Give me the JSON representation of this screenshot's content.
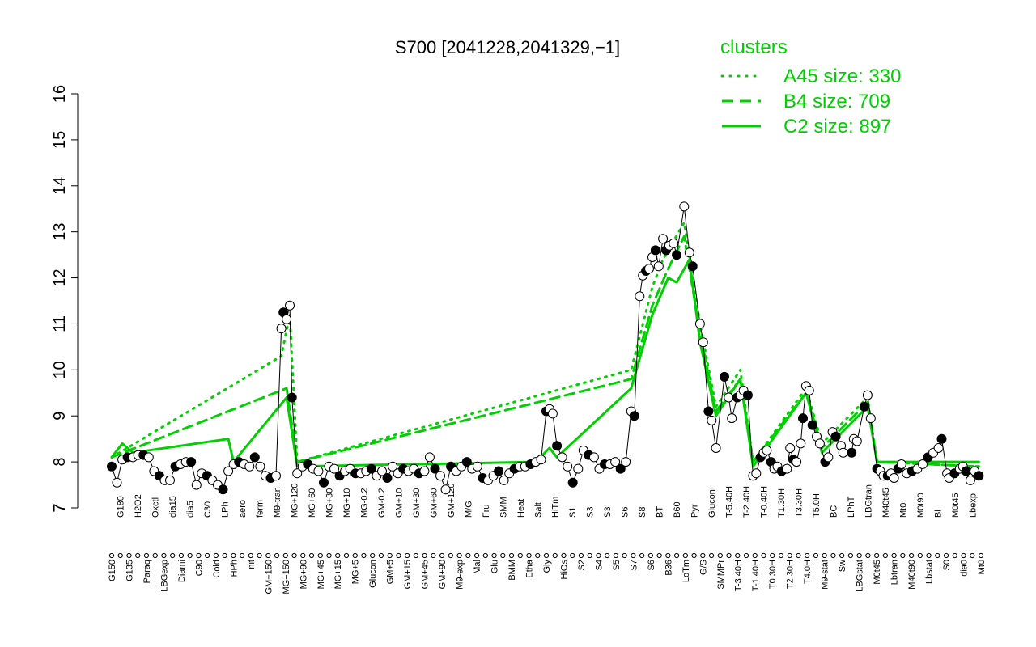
{
  "chart_data": {
    "type": "line",
    "title": "S700 [2041228,2041329,−1]",
    "xlabel": "",
    "ylabel": "",
    "ylim": [
      7,
      16
    ],
    "yticks": [
      7,
      8,
      9,
      10,
      11,
      12,
      13,
      14,
      15,
      16
    ],
    "x_tick_labels": [
      "G150",
      "G180",
      "G135",
      "H2O2",
      "Paraq",
      "Oxctl",
      "LBGexp",
      "dia15",
      "Diami",
      "dia5",
      "C90",
      "C30",
      "Cold",
      "LPh",
      "HPh",
      "aero",
      "nit",
      "ferm",
      "GM+150",
      "M9-tran",
      "MG+150",
      "MG+120",
      "MG+90",
      "MG+60",
      "MG+45",
      "MG+30",
      "MG+15",
      "MG+10",
      "MG+5",
      "MG-0.2",
      "Glucon",
      "GM-0.2",
      "GM+5",
      "GM+10",
      "GM+15",
      "GM+30",
      "GM+45",
      "GM+60",
      "GM+90",
      "GM+120",
      "M9-exp",
      "M/G",
      "Mal",
      "Fru",
      "Glu",
      "SMM",
      "BMM",
      "Heat",
      "Etha",
      "Salt",
      "Gly",
      "HiTm",
      "HiOs",
      "S1",
      "S2",
      "S3",
      "S4",
      "S3",
      "S5",
      "S6",
      "S7",
      "S8",
      "S6",
      "BT",
      "B36",
      "B60",
      "LoTm",
      "Pyr",
      "G/S",
      "Glucon",
      "SMMPr",
      "T-5.40H",
      "T-3.40H",
      "T-2.40H",
      "T-1.40H",
      "T-0.40H",
      "T0.30H",
      "T1.30H",
      "T2.30H",
      "T3.30H",
      "T4.0H",
      "T5.0H",
      "M9-stat",
      "BC",
      "Sw",
      "LPhT",
      "LBGstat",
      "LBGtran",
      "M0t45",
      "M40t45",
      "Lbtran",
      "Mt0",
      "M40t90",
      "M0t90",
      "Lbstat",
      "Bl",
      "S0",
      "M0t45",
      "dia0",
      "Lbexp",
      "Mt0"
    ],
    "legend": {
      "title": "clusters",
      "placement": "top-right",
      "entries": [
        {
          "label": "A45 size: 330",
          "style": "dotted"
        },
        {
          "label": "B4 size: 709",
          "style": "dashed"
        },
        {
          "label": "C2 size: 897",
          "style": "solid"
        }
      ]
    },
    "series": [
      {
        "name": "S700",
        "color": "#000000",
        "points": [
          [
            1,
            7.9
          ],
          [
            1.5,
            7.55
          ],
          [
            2,
            8.05
          ],
          [
            2.5,
            8.1
          ],
          [
            3,
            8.1
          ],
          [
            3.5,
            8.15
          ],
          [
            4,
            8.15
          ],
          [
            4.5,
            8.1
          ],
          [
            5,
            7.8
          ],
          [
            5.5,
            7.7
          ],
          [
            6,
            7.6
          ],
          [
            6.5,
            7.6
          ],
          [
            7,
            7.9
          ],
          [
            7.5,
            7.95
          ],
          [
            8,
            8.0
          ],
          [
            8.5,
            8.0
          ],
          [
            9,
            7.5
          ],
          [
            9.5,
            7.75
          ],
          [
            10,
            7.7
          ],
          [
            10.5,
            7.6
          ],
          [
            11,
            7.5
          ],
          [
            11.5,
            7.4
          ],
          [
            12,
            7.8
          ],
          [
            12.5,
            7.95
          ],
          [
            13,
            8.0
          ],
          [
            13.5,
            7.95
          ],
          [
            14,
            7.9
          ],
          [
            14.5,
            8.1
          ],
          [
            15,
            7.9
          ],
          [
            15.5,
            7.7
          ],
          [
            16,
            7.65
          ],
          [
            16.5,
            7.7
          ],
          [
            17,
            10.9
          ],
          [
            17.2,
            11.25
          ],
          [
            17.5,
            11.1
          ],
          [
            17.8,
            11.4
          ],
          [
            18,
            9.4
          ],
          [
            18.5,
            7.75
          ],
          [
            19,
            7.9
          ],
          [
            19.5,
            7.95
          ],
          [
            20,
            7.85
          ],
          [
            20.5,
            7.8
          ],
          [
            21,
            7.55
          ],
          [
            21.5,
            7.9
          ],
          [
            22,
            7.85
          ],
          [
            22.5,
            7.7
          ],
          [
            23,
            7.8
          ],
          [
            23.5,
            7.85
          ],
          [
            24,
            7.75
          ],
          [
            24.5,
            7.75
          ],
          [
            25,
            7.8
          ],
          [
            25.5,
            7.85
          ],
          [
            26,
            7.7
          ],
          [
            26.5,
            7.8
          ],
          [
            27,
            7.65
          ],
          [
            27.5,
            7.9
          ],
          [
            28,
            7.75
          ],
          [
            28.5,
            7.85
          ],
          [
            29,
            7.8
          ],
          [
            29.5,
            7.85
          ],
          [
            30,
            7.75
          ],
          [
            30.5,
            7.8
          ],
          [
            31,
            8.1
          ],
          [
            31.5,
            7.85
          ],
          [
            32,
            7.7
          ],
          [
            32.5,
            7.4
          ],
          [
            33,
            7.9
          ],
          [
            33.5,
            7.8
          ],
          [
            34,
            7.9
          ],
          [
            34.5,
            8.0
          ],
          [
            35,
            7.85
          ],
          [
            35.5,
            7.9
          ],
          [
            36,
            7.65
          ],
          [
            36.5,
            7.6
          ],
          [
            37,
            7.7
          ],
          [
            37.5,
            7.8
          ],
          [
            38,
            7.6
          ],
          [
            38.5,
            7.75
          ],
          [
            39,
            7.85
          ],
          [
            39.5,
            7.9
          ],
          [
            40,
            7.9
          ],
          [
            40.5,
            7.95
          ],
          [
            41,
            8.0
          ],
          [
            41.5,
            8.05
          ],
          [
            42,
            9.1
          ],
          [
            42.3,
            9.15
          ],
          [
            42.6,
            9.05
          ],
          [
            43,
            8.35
          ],
          [
            43.5,
            8.1
          ],
          [
            44,
            7.9
          ],
          [
            44.5,
            7.55
          ],
          [
            45,
            7.85
          ],
          [
            45.5,
            8.25
          ],
          [
            46,
            8.15
          ],
          [
            46.5,
            8.1
          ],
          [
            47,
            7.85
          ],
          [
            47.5,
            7.95
          ],
          [
            48,
            7.95
          ],
          [
            48.5,
            8.0
          ],
          [
            49,
            7.85
          ],
          [
            49.5,
            8.0
          ],
          [
            50,
            9.1
          ],
          [
            50.3,
            9.0
          ],
          [
            50.8,
            11.6
          ],
          [
            51.1,
            12.05
          ],
          [
            51.4,
            12.15
          ],
          [
            51.7,
            12.2
          ],
          [
            52,
            12.45
          ],
          [
            52.3,
            12.6
          ],
          [
            52.6,
            12.25
          ],
          [
            53,
            12.85
          ],
          [
            53.3,
            12.6
          ],
          [
            53.6,
            12.7
          ],
          [
            54,
            12.75
          ],
          [
            54.3,
            12.5
          ],
          [
            55,
            13.55
          ],
          [
            55.5,
            12.55
          ],
          [
            55.8,
            12.25
          ],
          [
            56.5,
            11.0
          ],
          [
            56.8,
            10.6
          ],
          [
            57.3,
            9.1
          ],
          [
            57.6,
            8.9
          ],
          [
            58,
            8.3
          ],
          [
            58.8,
            9.85
          ],
          [
            59.2,
            9.4
          ],
          [
            59.5,
            8.95
          ],
          [
            60,
            9.4
          ],
          [
            60.3,
            9.45
          ],
          [
            60.6,
            9.55
          ],
          [
            61,
            9.45
          ],
          [
            61.5,
            7.7
          ],
          [
            61.8,
            7.75
          ],
          [
            62.2,
            8.1
          ],
          [
            62.5,
            8.2
          ],
          [
            62.8,
            8.25
          ],
          [
            63.2,
            8.0
          ],
          [
            63.5,
            7.85
          ],
          [
            63.8,
            7.9
          ],
          [
            64.2,
            7.8
          ],
          [
            64.7,
            7.85
          ],
          [
            65,
            8.3
          ],
          [
            65.3,
            8.05
          ],
          [
            65.6,
            8.0
          ],
          [
            66,
            8.4
          ],
          [
            66.2,
            8.95
          ],
          [
            66.5,
            9.65
          ],
          [
            66.8,
            9.55
          ],
          [
            67.1,
            8.8
          ],
          [
            67.5,
            8.55
          ],
          [
            67.8,
            8.4
          ],
          [
            68.3,
            8.0
          ],
          [
            68.6,
            8.1
          ],
          [
            69,
            8.65
          ],
          [
            69.3,
            8.55
          ],
          [
            69.8,
            8.35
          ],
          [
            70,
            8.2
          ],
          [
            70.8,
            8.2
          ],
          [
            71,
            8.5
          ],
          [
            71.3,
            8.45
          ],
          [
            72,
            9.2
          ],
          [
            72.3,
            9.45
          ],
          [
            72.6,
            8.95
          ],
          [
            73.2,
            7.85
          ],
          [
            73.5,
            7.8
          ],
          [
            73.8,
            7.7
          ],
          [
            74.2,
            7.7
          ],
          [
            74.5,
            7.75
          ],
          [
            74.8,
            7.65
          ],
          [
            75.2,
            7.85
          ],
          [
            75.5,
            7.95
          ],
          [
            76,
            7.75
          ],
          [
            76.5,
            7.8
          ],
          [
            77,
            7.85
          ],
          [
            77.5,
            7.95
          ],
          [
            78,
            8.1
          ],
          [
            78.5,
            8.2
          ],
          [
            79,
            8.3
          ],
          [
            79.3,
            8.5
          ],
          [
            79.8,
            7.75
          ],
          [
            80,
            7.65
          ],
          [
            80.5,
            7.75
          ],
          [
            81,
            7.85
          ],
          [
            81.3,
            7.9
          ],
          [
            81.6,
            7.8
          ],
          [
            82,
            7.6
          ],
          [
            82.4,
            7.8
          ],
          [
            82.8,
            7.7
          ]
        ]
      },
      {
        "name": "A45 size: 330",
        "color": "#00d000",
        "style": "dotted",
        "values_ref": "approx",
        "points": [
          [
            1,
            8.1
          ],
          [
            17,
            10.3
          ],
          [
            17.8,
            11.2
          ],
          [
            18.5,
            8.0
          ],
          [
            50,
            10.0
          ],
          [
            52,
            11.8
          ],
          [
            53,
            12.4
          ],
          [
            55,
            13.2
          ],
          [
            56.5,
            11.0
          ],
          [
            58,
            9.2
          ],
          [
            60.3,
            10.0
          ],
          [
            61.5,
            8.0
          ],
          [
            66.5,
            9.6
          ],
          [
            68,
            8.4
          ],
          [
            72.3,
            9.4
          ],
          [
            73.2,
            8.0
          ],
          [
            82.8,
            7.9
          ]
        ]
      },
      {
        "name": "B4 size: 709",
        "color": "#00d000",
        "style": "dashed",
        "values_ref": "approx",
        "points": [
          [
            1,
            8.1
          ],
          [
            17.5,
            9.6
          ],
          [
            18.5,
            8.0
          ],
          [
            50,
            9.8
          ],
          [
            52,
            11.4
          ],
          [
            53.5,
            12.2
          ],
          [
            55,
            12.9
          ],
          [
            56.5,
            10.8
          ],
          [
            58,
            9.1
          ],
          [
            60.3,
            9.8
          ],
          [
            61.5,
            8.0
          ],
          [
            66.5,
            9.5
          ],
          [
            68,
            8.3
          ],
          [
            72.3,
            9.3
          ],
          [
            73.2,
            8.0
          ],
          [
            82.8,
            7.9
          ]
        ]
      },
      {
        "name": "C2 size: 897",
        "color": "#00d000",
        "style": "solid",
        "values_ref": "approx",
        "points": [
          [
            1,
            8.1
          ],
          [
            2,
            8.4
          ],
          [
            3,
            8.2
          ],
          [
            12,
            8.5
          ],
          [
            12.5,
            8.0
          ],
          [
            17.5,
            9.4
          ],
          [
            18.5,
            7.9
          ],
          [
            41,
            8.0
          ],
          [
            42.3,
            8.3
          ],
          [
            43,
            8.1
          ],
          [
            50,
            9.6
          ],
          [
            52,
            11.2
          ],
          [
            53.5,
            12.0
          ],
          [
            54.3,
            11.9
          ],
          [
            55.5,
            12.4
          ],
          [
            56.5,
            10.6
          ],
          [
            58,
            9.0
          ],
          [
            60.3,
            9.8
          ],
          [
            61.5,
            7.9
          ],
          [
            66.5,
            9.5
          ],
          [
            68,
            8.2
          ],
          [
            72.3,
            9.2
          ],
          [
            73.2,
            8.0
          ],
          [
            82.8,
            8.0
          ]
        ]
      }
    ]
  }
}
